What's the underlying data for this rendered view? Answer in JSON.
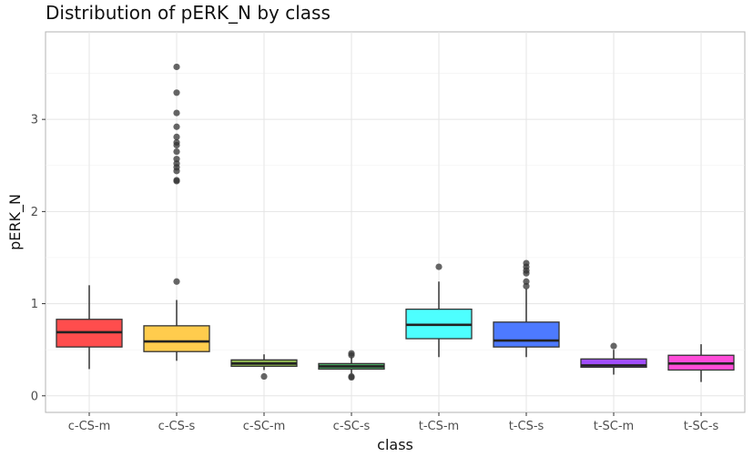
{
  "chart_data": {
    "type": "box",
    "title": "Distribution of pERK_N by class",
    "xlabel": "class",
    "ylabel": "pERK_N",
    "ylim": [
      -0.18,
      3.95
    ],
    "yticks": [
      0,
      1,
      2,
      3
    ],
    "grid": true,
    "legend": "none",
    "categories": [
      "c-CS-m",
      "c-CS-s",
      "c-SC-m",
      "c-SC-s",
      "t-CS-m",
      "t-CS-s",
      "t-SC-m",
      "t-SC-s"
    ],
    "boxes": [
      {
        "category": "c-CS-m",
        "color": "#ff4d4d",
        "whisker_low": 0.29,
        "q1": 0.53,
        "median": 0.69,
        "q3": 0.83,
        "whisker_high": 1.2,
        "outliers": []
      },
      {
        "category": "c-CS-s",
        "color": "#ffcc4d",
        "whisker_low": 0.38,
        "q1": 0.48,
        "median": 0.59,
        "q3": 0.76,
        "whisker_high": 1.04,
        "outliers": [
          1.24,
          2.33,
          2.34,
          2.44,
          2.48,
          2.52,
          2.57,
          2.65,
          2.72,
          2.75,
          2.81,
          2.92,
          3.07,
          3.29,
          3.57
        ]
      },
      {
        "category": "c-SC-m",
        "color": "#8ab04d",
        "whisker_low": 0.28,
        "q1": 0.32,
        "median": 0.35,
        "q3": 0.39,
        "whisker_high": 0.45,
        "outliers": [
          0.21
        ]
      },
      {
        "category": "c-SC-s",
        "color": "#4dab66",
        "whisker_low": 0.24,
        "q1": 0.29,
        "median": 0.32,
        "q3": 0.35,
        "whisker_high": 0.42,
        "outliers": [
          0.2,
          0.21,
          0.44,
          0.46
        ]
      },
      {
        "category": "t-CS-m",
        "color": "#4dffff",
        "whisker_low": 0.42,
        "q1": 0.62,
        "median": 0.77,
        "q3": 0.94,
        "whisker_high": 1.24,
        "outliers": [
          1.4
        ]
      },
      {
        "category": "t-CS-s",
        "color": "#4d7aff",
        "whisker_low": 0.42,
        "q1": 0.53,
        "median": 0.6,
        "q3": 0.8,
        "whisker_high": 1.16,
        "outliers": [
          1.19,
          1.24,
          1.33,
          1.36,
          1.4,
          1.44
        ]
      },
      {
        "category": "t-SC-m",
        "color": "#a04dff",
        "whisker_low": 0.23,
        "q1": 0.31,
        "median": 0.33,
        "q3": 0.4,
        "whisker_high": 0.5,
        "outliers": [
          0.54
        ]
      },
      {
        "category": "t-SC-s",
        "color": "#ff4dd9",
        "whisker_low": 0.15,
        "q1": 0.28,
        "median": 0.35,
        "q3": 0.44,
        "whisker_high": 0.56,
        "outliers": []
      }
    ]
  }
}
